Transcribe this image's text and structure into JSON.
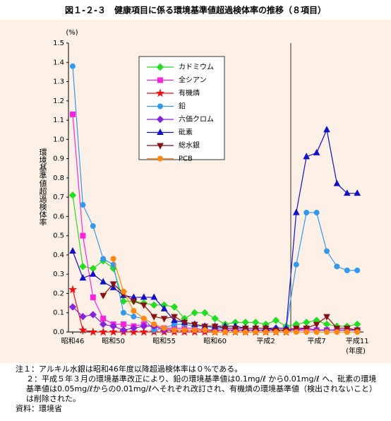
{
  "chart_data": {
    "type": "line",
    "title": "図１-２-３　健康項目に係る環境基準値超過検体率の推移（８項目）",
    "y_unit": "(%)",
    "y_label": "環境基準値超過検体率",
    "x_unit": "(年度)",
    "categories": [
      "昭和46",
      null,
      null,
      null,
      "昭和50",
      null,
      null,
      null,
      null,
      "昭和55",
      null,
      null,
      null,
      null,
      "昭和60",
      null,
      null,
      null,
      null,
      "平成2",
      null,
      null,
      null,
      null,
      "平成7",
      null,
      null,
      null,
      "平成11"
    ],
    "ylim": [
      0,
      1.5
    ],
    "yticks": [
      {
        "value": 0,
        "label": "0.0"
      },
      0.1,
      0.2,
      0.3,
      0.4,
      0.5,
      0.6,
      0.7,
      0.8,
      0.9,
      {
        "value": 1,
        "label": "1.0"
      },
      1.1,
      1.2,
      1.3,
      1.4,
      1.5
    ],
    "series": [
      {
        "name": "カドミウム",
        "color": "#22dd22",
        "marker": "diamond",
        "values": [
          0.71,
          0.34,
          0.33,
          0.37,
          0.33,
          0.16,
          0.16,
          0.15,
          0.14,
          0.14,
          0.13,
          0.07,
          0.1,
          0.1,
          0.07,
          0.04,
          0.05,
          0.05,
          0.05,
          0.04,
          0.06,
          0.03,
          0.04,
          0.05,
          0.06,
          0.04,
          0.03,
          0.03,
          0.04
        ]
      },
      {
        "name": "全シアン",
        "color": "#ff22dd",
        "marker": "square",
        "values": [
          1.13,
          0.5,
          0.18,
          0.07,
          0.04,
          0.04,
          0.03,
          0.04,
          0.03,
          0.02,
          0.02,
          0.02,
          0.02,
          0.01,
          0.01,
          0.01,
          0.01,
          0.01,
          0.01,
          0.01,
          0.01,
          0.01,
          0.01,
          0.01,
          0.01,
          0.01,
          0.01,
          0.01,
          0.01
        ]
      },
      {
        "name": "有機燐",
        "color": "#ee1111",
        "marker": "star",
        "values": [
          0.22,
          0.01,
          0,
          0,
          0,
          0,
          0,
          0,
          0,
          0,
          0,
          0,
          0,
          0,
          0,
          0,
          0,
          0,
          0,
          0,
          0,
          0,
          null,
          null,
          null,
          null,
          null,
          null,
          null
        ]
      },
      {
        "name": "鉛",
        "color": "#3399ee",
        "marker": "circle",
        "values": [
          1.38,
          0.66,
          0.55,
          0.38,
          0.35,
          0.1,
          0.08,
          0.07,
          0.01,
          0.02,
          0.04,
          0.04,
          0.03,
          0.03,
          0.02,
          0.02,
          0.02,
          0.02,
          0.02,
          0.02,
          0.02,
          0.02,
          0.35,
          0.62,
          0.62,
          0.42,
          0.34,
          0.32,
          0.32
        ]
      },
      {
        "name": "六価クロム",
        "color": "#8822dd",
        "marker": "diamond",
        "values": [
          0.13,
          0.08,
          0.09,
          0.04,
          0.03,
          0.01,
          0.02,
          0.03,
          0.03,
          0.01,
          0.01,
          0.01,
          0.01,
          0.01,
          0.01,
          0.01,
          0.01,
          0.01,
          0.01,
          0.01,
          0.01,
          0.01,
          0.01,
          0.02,
          0.01,
          0.01,
          0.01,
          0.01,
          0.01
        ]
      },
      {
        "name": "砒素",
        "color": "#1111cc",
        "marker": "triangle",
        "values": [
          0.42,
          0.28,
          0.3,
          0.26,
          0.23,
          0.19,
          0.18,
          0.18,
          0.18,
          0.12,
          0.06,
          0.05,
          0.04,
          0.03,
          0.03,
          0.03,
          0.03,
          0.02,
          0.02,
          0.02,
          0.02,
          0.02,
          0.62,
          0.91,
          0.93,
          1.05,
          0.77,
          0.72,
          0.72
        ]
      },
      {
        "name": "総水銀",
        "color": "#881111",
        "marker": "tridown",
        "values": [
          null,
          null,
          null,
          0.19,
          0.25,
          0.2,
          0.16,
          0.14,
          0.08,
          0.07,
          0.08,
          0.05,
          0.04,
          0.03,
          0.03,
          0.02,
          0.02,
          0.02,
          0.02,
          0.02,
          0.01,
          0.01,
          0.02,
          0.02,
          0.04,
          0.08,
          0.02,
          0.02,
          0.01
        ]
      },
      {
        "name": "PCB",
        "color": "#ff8811",
        "marker": "circle",
        "values": [
          null,
          null,
          null,
          null,
          0.38,
          0.21,
          0.11,
          0.07,
          0.04,
          0.02,
          0.01,
          0.01,
          0.01,
          0.01,
          0,
          0,
          0,
          0,
          0,
          0,
          0,
          0,
          0,
          0,
          0,
          0,
          0,
          0,
          0
        ]
      }
    ]
  },
  "notes": [
    "注１：アルキル水銀は昭和46年度以降超過検体率は０%である。",
    "２：平成５年３月の環境基準改正により、鉛の環境基準値は0.1mg/ℓ から0.01mg/ℓ へ、砒素の環境基準値は0.05mg/ℓからの0.01mg/ℓへそれぞれ改訂され、有機燐の環境基準値（検出されないこと）は削除された。",
    "資料：環境省"
  ]
}
